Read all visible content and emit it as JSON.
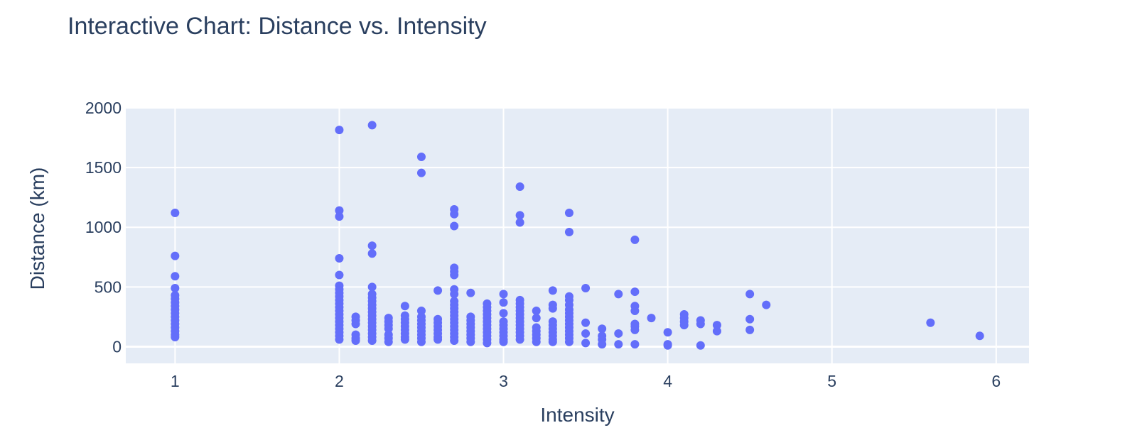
{
  "chart_data": {
    "type": "scatter",
    "title": "Interactive Chart: Distance vs. Intensity",
    "xlabel": "Intensity",
    "ylabel": "Distance (km)",
    "xlim": [
      0.7,
      6.2
    ],
    "ylim": [
      -140,
      2000
    ],
    "x_ticks": [
      1,
      2,
      3,
      4,
      5,
      6
    ],
    "y_ticks": [
      0,
      500,
      1000,
      1500,
      2000
    ],
    "grid": true,
    "colors": {
      "marker": "#636efa",
      "plot_bg": "#e5ecf6",
      "grid": "#ffffff",
      "text": "#2a3f5f"
    },
    "series": [
      {
        "points": [
          [
            1,
            1120
          ],
          [
            1,
            760
          ],
          [
            1,
            590
          ],
          [
            1,
            490
          ],
          [
            1,
            430
          ],
          [
            1,
            400
          ],
          [
            1,
            370
          ],
          [
            1,
            340
          ],
          [
            1,
            310
          ],
          [
            1,
            280
          ],
          [
            1,
            250
          ],
          [
            1,
            220
          ],
          [
            1,
            190
          ],
          [
            1,
            160
          ],
          [
            1,
            130
          ],
          [
            1,
            100
          ],
          [
            1,
            80
          ],
          [
            2,
            1815
          ],
          [
            2,
            1140
          ],
          [
            2,
            1090
          ],
          [
            2,
            740
          ],
          [
            2,
            600
          ],
          [
            2,
            510
          ],
          [
            2,
            480
          ],
          [
            2,
            450
          ],
          [
            2,
            420
          ],
          [
            2,
            390
          ],
          [
            2,
            360
          ],
          [
            2,
            330
          ],
          [
            2,
            300
          ],
          [
            2,
            270
          ],
          [
            2,
            240
          ],
          [
            2,
            210
          ],
          [
            2,
            180
          ],
          [
            2,
            150
          ],
          [
            2,
            120
          ],
          [
            2,
            90
          ],
          [
            2,
            60
          ],
          [
            2.1,
            250
          ],
          [
            2.1,
            220
          ],
          [
            2.1,
            190
          ],
          [
            2.1,
            100
          ],
          [
            2.1,
            70
          ],
          [
            2.1,
            50
          ],
          [
            2.2,
            1855
          ],
          [
            2.2,
            845
          ],
          [
            2.2,
            780
          ],
          [
            2.2,
            500
          ],
          [
            2.2,
            440
          ],
          [
            2.2,
            410
          ],
          [
            2.2,
            380
          ],
          [
            2.2,
            350
          ],
          [
            2.2,
            320
          ],
          [
            2.2,
            290
          ],
          [
            2.2,
            260
          ],
          [
            2.2,
            230
          ],
          [
            2.2,
            200
          ],
          [
            2.2,
            170
          ],
          [
            2.2,
            140
          ],
          [
            2.2,
            110
          ],
          [
            2.2,
            80
          ],
          [
            2.2,
            50
          ],
          [
            2.3,
            240
          ],
          [
            2.3,
            210
          ],
          [
            2.3,
            180
          ],
          [
            2.3,
            150
          ],
          [
            2.3,
            100
          ],
          [
            2.3,
            70
          ],
          [
            2.3,
            40
          ],
          [
            2.4,
            340
          ],
          [
            2.4,
            260
          ],
          [
            2.4,
            230
          ],
          [
            2.4,
            200
          ],
          [
            2.4,
            170
          ],
          [
            2.4,
            140
          ],
          [
            2.4,
            110
          ],
          [
            2.4,
            80
          ],
          [
            2.4,
            60
          ],
          [
            2.5,
            1590
          ],
          [
            2.5,
            1455
          ],
          [
            2.5,
            300
          ],
          [
            2.5,
            250
          ],
          [
            2.5,
            220
          ],
          [
            2.5,
            190
          ],
          [
            2.5,
            160
          ],
          [
            2.5,
            130
          ],
          [
            2.5,
            100
          ],
          [
            2.5,
            70
          ],
          [
            2.5,
            40
          ],
          [
            2.6,
            470
          ],
          [
            2.6,
            230
          ],
          [
            2.6,
            200
          ],
          [
            2.6,
            170
          ],
          [
            2.6,
            140
          ],
          [
            2.6,
            110
          ],
          [
            2.6,
            80
          ],
          [
            2.6,
            60
          ],
          [
            2.7,
            1150
          ],
          [
            2.7,
            1110
          ],
          [
            2.7,
            1010
          ],
          [
            2.7,
            660
          ],
          [
            2.7,
            630
          ],
          [
            2.7,
            600
          ],
          [
            2.7,
            480
          ],
          [
            2.7,
            440
          ],
          [
            2.7,
            380
          ],
          [
            2.7,
            350
          ],
          [
            2.7,
            320
          ],
          [
            2.7,
            290
          ],
          [
            2.7,
            260
          ],
          [
            2.7,
            230
          ],
          [
            2.7,
            200
          ],
          [
            2.7,
            170
          ],
          [
            2.7,
            140
          ],
          [
            2.7,
            110
          ],
          [
            2.7,
            80
          ],
          [
            2.7,
            50
          ],
          [
            2.8,
            450
          ],
          [
            2.8,
            250
          ],
          [
            2.8,
            220
          ],
          [
            2.8,
            190
          ],
          [
            2.8,
            160
          ],
          [
            2.8,
            130
          ],
          [
            2.8,
            100
          ],
          [
            2.8,
            70
          ],
          [
            2.8,
            40
          ],
          [
            2.9,
            360
          ],
          [
            2.9,
            330
          ],
          [
            2.9,
            300
          ],
          [
            2.9,
            270
          ],
          [
            2.9,
            240
          ],
          [
            2.9,
            210
          ],
          [
            2.9,
            180
          ],
          [
            2.9,
            150
          ],
          [
            2.9,
            120
          ],
          [
            2.9,
            90
          ],
          [
            2.9,
            60
          ],
          [
            2.9,
            30
          ],
          [
            3,
            440
          ],
          [
            3,
            370
          ],
          [
            3,
            280
          ],
          [
            3,
            210
          ],
          [
            3,
            180
          ],
          [
            3,
            150
          ],
          [
            3,
            120
          ],
          [
            3,
            90
          ],
          [
            3,
            60
          ],
          [
            3,
            40
          ],
          [
            3.1,
            1340
          ],
          [
            3.1,
            1100
          ],
          [
            3.1,
            1040
          ],
          [
            3.1,
            390
          ],
          [
            3.1,
            360
          ],
          [
            3.1,
            330
          ],
          [
            3.1,
            300
          ],
          [
            3.1,
            270
          ],
          [
            3.1,
            240
          ],
          [
            3.1,
            210
          ],
          [
            3.1,
            180
          ],
          [
            3.1,
            150
          ],
          [
            3.1,
            120
          ],
          [
            3.1,
            90
          ],
          [
            3.1,
            60
          ],
          [
            3.2,
            300
          ],
          [
            3.2,
            240
          ],
          [
            3.2,
            160
          ],
          [
            3.2,
            130
          ],
          [
            3.2,
            100
          ],
          [
            3.2,
            70
          ],
          [
            3.2,
            40
          ],
          [
            3.3,
            470
          ],
          [
            3.3,
            350
          ],
          [
            3.3,
            320
          ],
          [
            3.3,
            210
          ],
          [
            3.3,
            180
          ],
          [
            3.3,
            150
          ],
          [
            3.3,
            120
          ],
          [
            3.3,
            90
          ],
          [
            3.3,
            60
          ],
          [
            3.3,
            40
          ],
          [
            3.4,
            1120
          ],
          [
            3.4,
            960
          ],
          [
            3.4,
            420
          ],
          [
            3.4,
            390
          ],
          [
            3.4,
            350
          ],
          [
            3.4,
            310
          ],
          [
            3.4,
            280
          ],
          [
            3.4,
            250
          ],
          [
            3.4,
            220
          ],
          [
            3.4,
            190
          ],
          [
            3.4,
            160
          ],
          [
            3.4,
            130
          ],
          [
            3.4,
            100
          ],
          [
            3.4,
            70
          ],
          [
            3.4,
            40
          ],
          [
            3.5,
            490
          ],
          [
            3.5,
            200
          ],
          [
            3.5,
            110
          ],
          [
            3.5,
            30
          ],
          [
            3.6,
            150
          ],
          [
            3.6,
            90
          ],
          [
            3.6,
            60
          ],
          [
            3.6,
            20
          ],
          [
            3.7,
            440
          ],
          [
            3.7,
            110
          ],
          [
            3.7,
            20
          ],
          [
            3.8,
            895
          ],
          [
            3.8,
            460
          ],
          [
            3.8,
            340
          ],
          [
            3.8,
            300
          ],
          [
            3.8,
            190
          ],
          [
            3.8,
            170
          ],
          [
            3.8,
            140
          ],
          [
            3.8,
            20
          ],
          [
            3.9,
            240
          ],
          [
            4,
            120
          ],
          [
            4,
            20
          ],
          [
            4,
            10
          ],
          [
            4.1,
            270
          ],
          [
            4.1,
            240
          ],
          [
            4.1,
            210
          ],
          [
            4.1,
            180
          ],
          [
            4.2,
            220
          ],
          [
            4.2,
            190
          ],
          [
            4.2,
            10
          ],
          [
            4.3,
            180
          ],
          [
            4.3,
            130
          ],
          [
            4.5,
            440
          ],
          [
            4.5,
            230
          ],
          [
            4.5,
            140
          ],
          [
            4.6,
            350
          ],
          [
            5.6,
            200
          ],
          [
            5.9,
            90
          ]
        ]
      }
    ]
  }
}
